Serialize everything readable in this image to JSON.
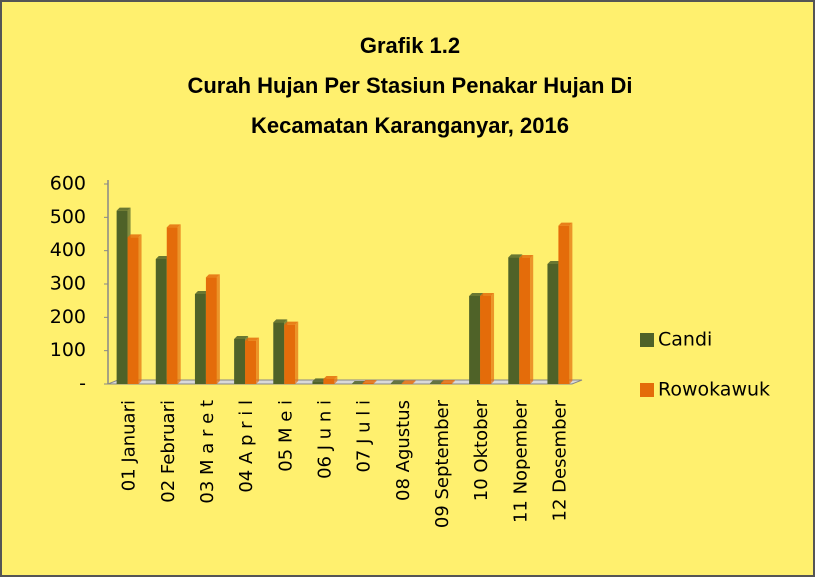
{
  "chart_data": {
    "type": "bar",
    "title": [
      "Grafik 1.2",
      "Curah Hujan Per Stasiun Penakar Hujan Di",
      "Kecamatan Karanganyar, 2016"
    ],
    "categories": [
      "01 Januari",
      "02 Februari",
      "03 M a r e t",
      "04 A p r i l",
      "05 M e i",
      "06 J u n i",
      "07 J u l i",
      "08 Agustus",
      "09 September",
      "10 Oktober",
      "11 Nopember",
      "12 Desember"
    ],
    "series": [
      {
        "name": "Candi",
        "color": "#4f6228",
        "values": [
          520,
          375,
          270,
          135,
          185,
          8,
          0,
          2,
          2,
          264,
          380,
          360
        ]
      },
      {
        "name": "Rowokawuk",
        "color": "#e46c0a",
        "values": [
          440,
          470,
          320,
          130,
          178,
          15,
          3,
          2,
          3,
          264,
          378,
          475
        ]
      }
    ],
    "ylim": [
      0,
      600
    ],
    "yticks": [
      {
        "value": 0,
        "label": "-"
      },
      100,
      200,
      300,
      400,
      500,
      600
    ],
    "legend": "right"
  }
}
